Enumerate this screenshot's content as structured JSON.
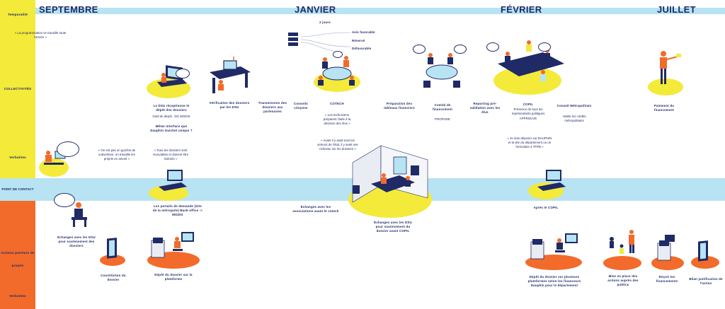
{
  "lanes": {
    "temporalite": "Temporalité",
    "collectivites": "COLLECTIVITÉS",
    "verbatims_top": "Verbatims",
    "point_de_contact": "POINT DE CONTACT",
    "porteurs": "Actions porteurs de projets",
    "verbatims_bottom": "Verbatims"
  },
  "months": {
    "septembre": "SEPTEMBRE",
    "janvier": "JANVIER",
    "fevrier": "FÉVRIER",
    "juillet": "JUILLET"
  },
  "colors": {
    "navy": "#1f2a66",
    "yellow": "#f4ea3a",
    "light_blue": "#b7e3f2",
    "orange": "#f26b2b"
  },
  "collectivites": {
    "quote_programmation": "« La programmation se travaille toute l'année »",
    "dsu_receptionne": "Le DSU réceptionne le dépôt des dossiers",
    "dsu_receptionne_sub": "Outil de dépôt : DG MGDIS",
    "meme_interface": "Même interface que Dauphin Guichet unique ?",
    "verification": "Vérification des dossiers par les DSU",
    "transmission": "Transmission des dossiers aux partenaires",
    "conseils": "Conseils citoyens",
    "cotech": "COTECH",
    "deux_jours": "2 jours",
    "avis_favorable": "Avis favorable",
    "reserve": "Réservé",
    "defavorable": "Défavorable",
    "preparation": "Préparation des tableaux financiers",
    "comite": "Comité de financement",
    "comite_sub": "PROPOSE",
    "reporting": "Reporting pré-validation avec les élus",
    "copil": "COPIL",
    "copil_sub": "Présence de tous les représentants politiques",
    "copil_sub2": "APPROUVE",
    "conseil_metro": "Conseil Métropolitain",
    "conseil_metro_sub": "Valide les crédits métropolitains",
    "paiement": "Paiement du financement"
  },
  "verbatims_top": {
    "guichet": "« On est pas un guichet de subvention, on travaille les projets en amont »",
    "dossiers": "« Tous les dossiers sont recevables et doivent être instruits »",
    "techniciens": "« Les techniciens préparent l'aide à la décision des élus »",
    "acteurs": "« Avant il y avait tous les acteurs de l'état, il y avait une richesse sur les dossiers »",
    "dauphin": "« Je dois déposer sur DAUPHIN et la site du département ou un formulaire à TFPB »"
  },
  "point_de_contact": {
    "portails": "Les portails de demande (Site de la métropole) Back-office -> MGDIS",
    "echanges_associations": "Échanges avec les associations avant le cotech",
    "echanges_dsu": "Échanges avec les DSU pour soutenement du dossier avant COPIL",
    "apres_copil": "Après le COPIL"
  },
  "porteurs": {
    "echanges_dsu": "Échanges avec les DSU pour soutenement des dossiers",
    "constitution": "Constitution du dossier",
    "depot": "Dépôt du dossier sur la plateforme",
    "depot_multi": "Dépôt du dossier sur plusieurs plateformes selon les financeurs Dauphin pour le département",
    "mise_en_place": "Mise en place des actions auprès des publics",
    "recoit": "Reçoit les financements",
    "bilan": "Bilan justification de l'action"
  }
}
